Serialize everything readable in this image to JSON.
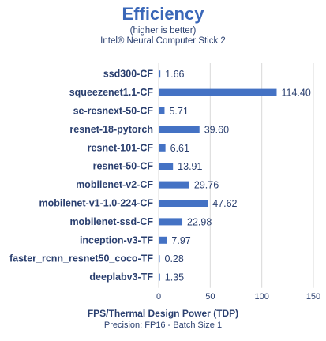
{
  "chart_data": {
    "type": "bar",
    "orientation": "horizontal",
    "title": "Efficiency",
    "subtitle": "(higher is better)",
    "subtitle2": "Intel® Neural Computer Stick 2",
    "xlabel": "FPS/Thermal Design Power (TDP)",
    "footnote": "Precision: FP16 - Batch Size 1",
    "categories": [
      "ssd300-CF",
      "squeezenet1.1-CF",
      "se-resnext-50-CF",
      "resnet-18-pytorch",
      "resnet-101-CF",
      "resnet-50-CF",
      "mobilenet-v2-CF",
      "mobilenet-v1-1.0-224-CF",
      "mobilenet-ssd-CF",
      "inception-v3-TF",
      "faster_rcnn_resnet50_coco-TF",
      "deeplabv3-TF"
    ],
    "values": [
      1.66,
      114.4,
      5.71,
      39.6,
      6.61,
      13.91,
      29.76,
      47.62,
      22.98,
      7.97,
      0.28,
      1.35
    ],
    "value_labels": [
      "1.66",
      "114.40",
      "5.71",
      "39.60",
      "6.61",
      "13.91",
      "29.76",
      "47.62",
      "22.98",
      "7.97",
      "0.28",
      "1.35"
    ],
    "xlim": [
      0,
      150
    ],
    "xticks": [
      0,
      50,
      100,
      150
    ],
    "xtick_labels": [
      "0",
      "50",
      "100",
      "150"
    ],
    "grid": true,
    "colors": {
      "bar": "#4472c4",
      "title": "#3a67b8",
      "text": "#2a3f6f",
      "grid": "#d9d9d9"
    }
  }
}
